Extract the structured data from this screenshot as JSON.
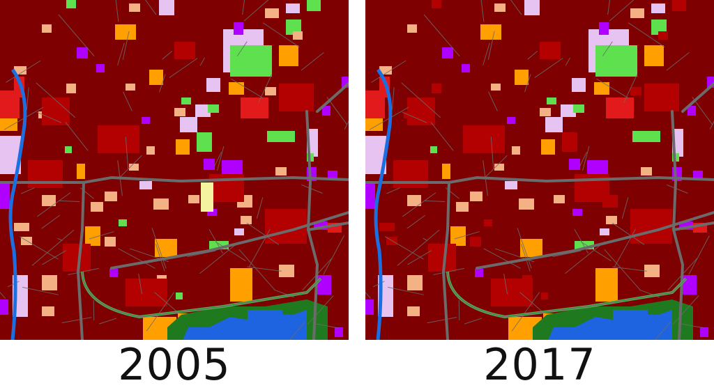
{
  "panels": [
    {
      "year": "2005",
      "variant": "2005"
    },
    {
      "year": "2017",
      "variant": "2017"
    }
  ],
  "colors": {
    "urban_dense": "#7f0000",
    "urban_medium": "#b30000",
    "urban_light": "#e31a1c",
    "residential_sparse": "#f4b183",
    "industrial": "#ff9f00",
    "green_urban": "#5ee04f",
    "public_facilities": "#e6c3f0",
    "commercial": "#b000ff",
    "forest": "#1f7a1f",
    "water": "#1e63e0",
    "river": "#1b6fe0",
    "roads": "#6b6b6b",
    "highway": "#49b44a",
    "pink_area": "#ff66cc",
    "pale_yellow": "#f3f3a0"
  }
}
